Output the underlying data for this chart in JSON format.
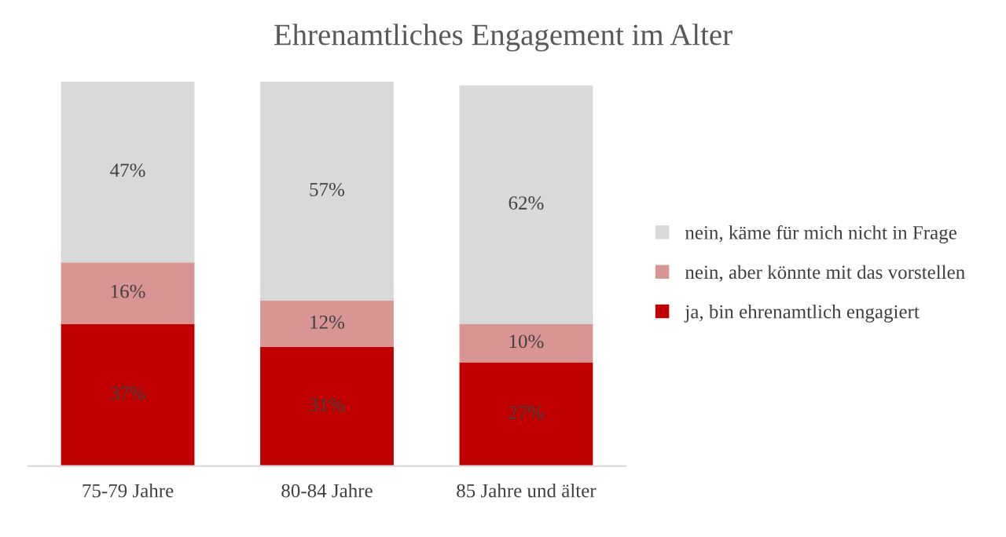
{
  "chart_data": {
    "type": "bar",
    "stacked": true,
    "title": "Ehrenamtliches Engagement im Alter",
    "categories": [
      "75-79 Jahre",
      "80-84 Jahre",
      "85 Jahre und älter"
    ],
    "series": [
      {
        "name": "ja, bin ehrenamtlich engagiert",
        "color": "#c00000",
        "values": [
          37,
          31,
          27
        ],
        "value_labels": [
          "37%",
          "31%",
          "27%"
        ]
      },
      {
        "name": "nein, aber könnte mit das vorstellen",
        "color": "#d99594",
        "values": [
          16,
          12,
          10
        ],
        "value_labels": [
          "16%",
          "12%",
          "10%"
        ]
      },
      {
        "name": "nein, käme für mich nicht in Frage",
        "color": "#d9d9d9",
        "values": [
          47,
          57,
          62
        ],
        "value_labels": [
          "47%",
          "57%",
          "62%"
        ]
      }
    ],
    "tick_labels": "x",
    "legend": "right"
  }
}
